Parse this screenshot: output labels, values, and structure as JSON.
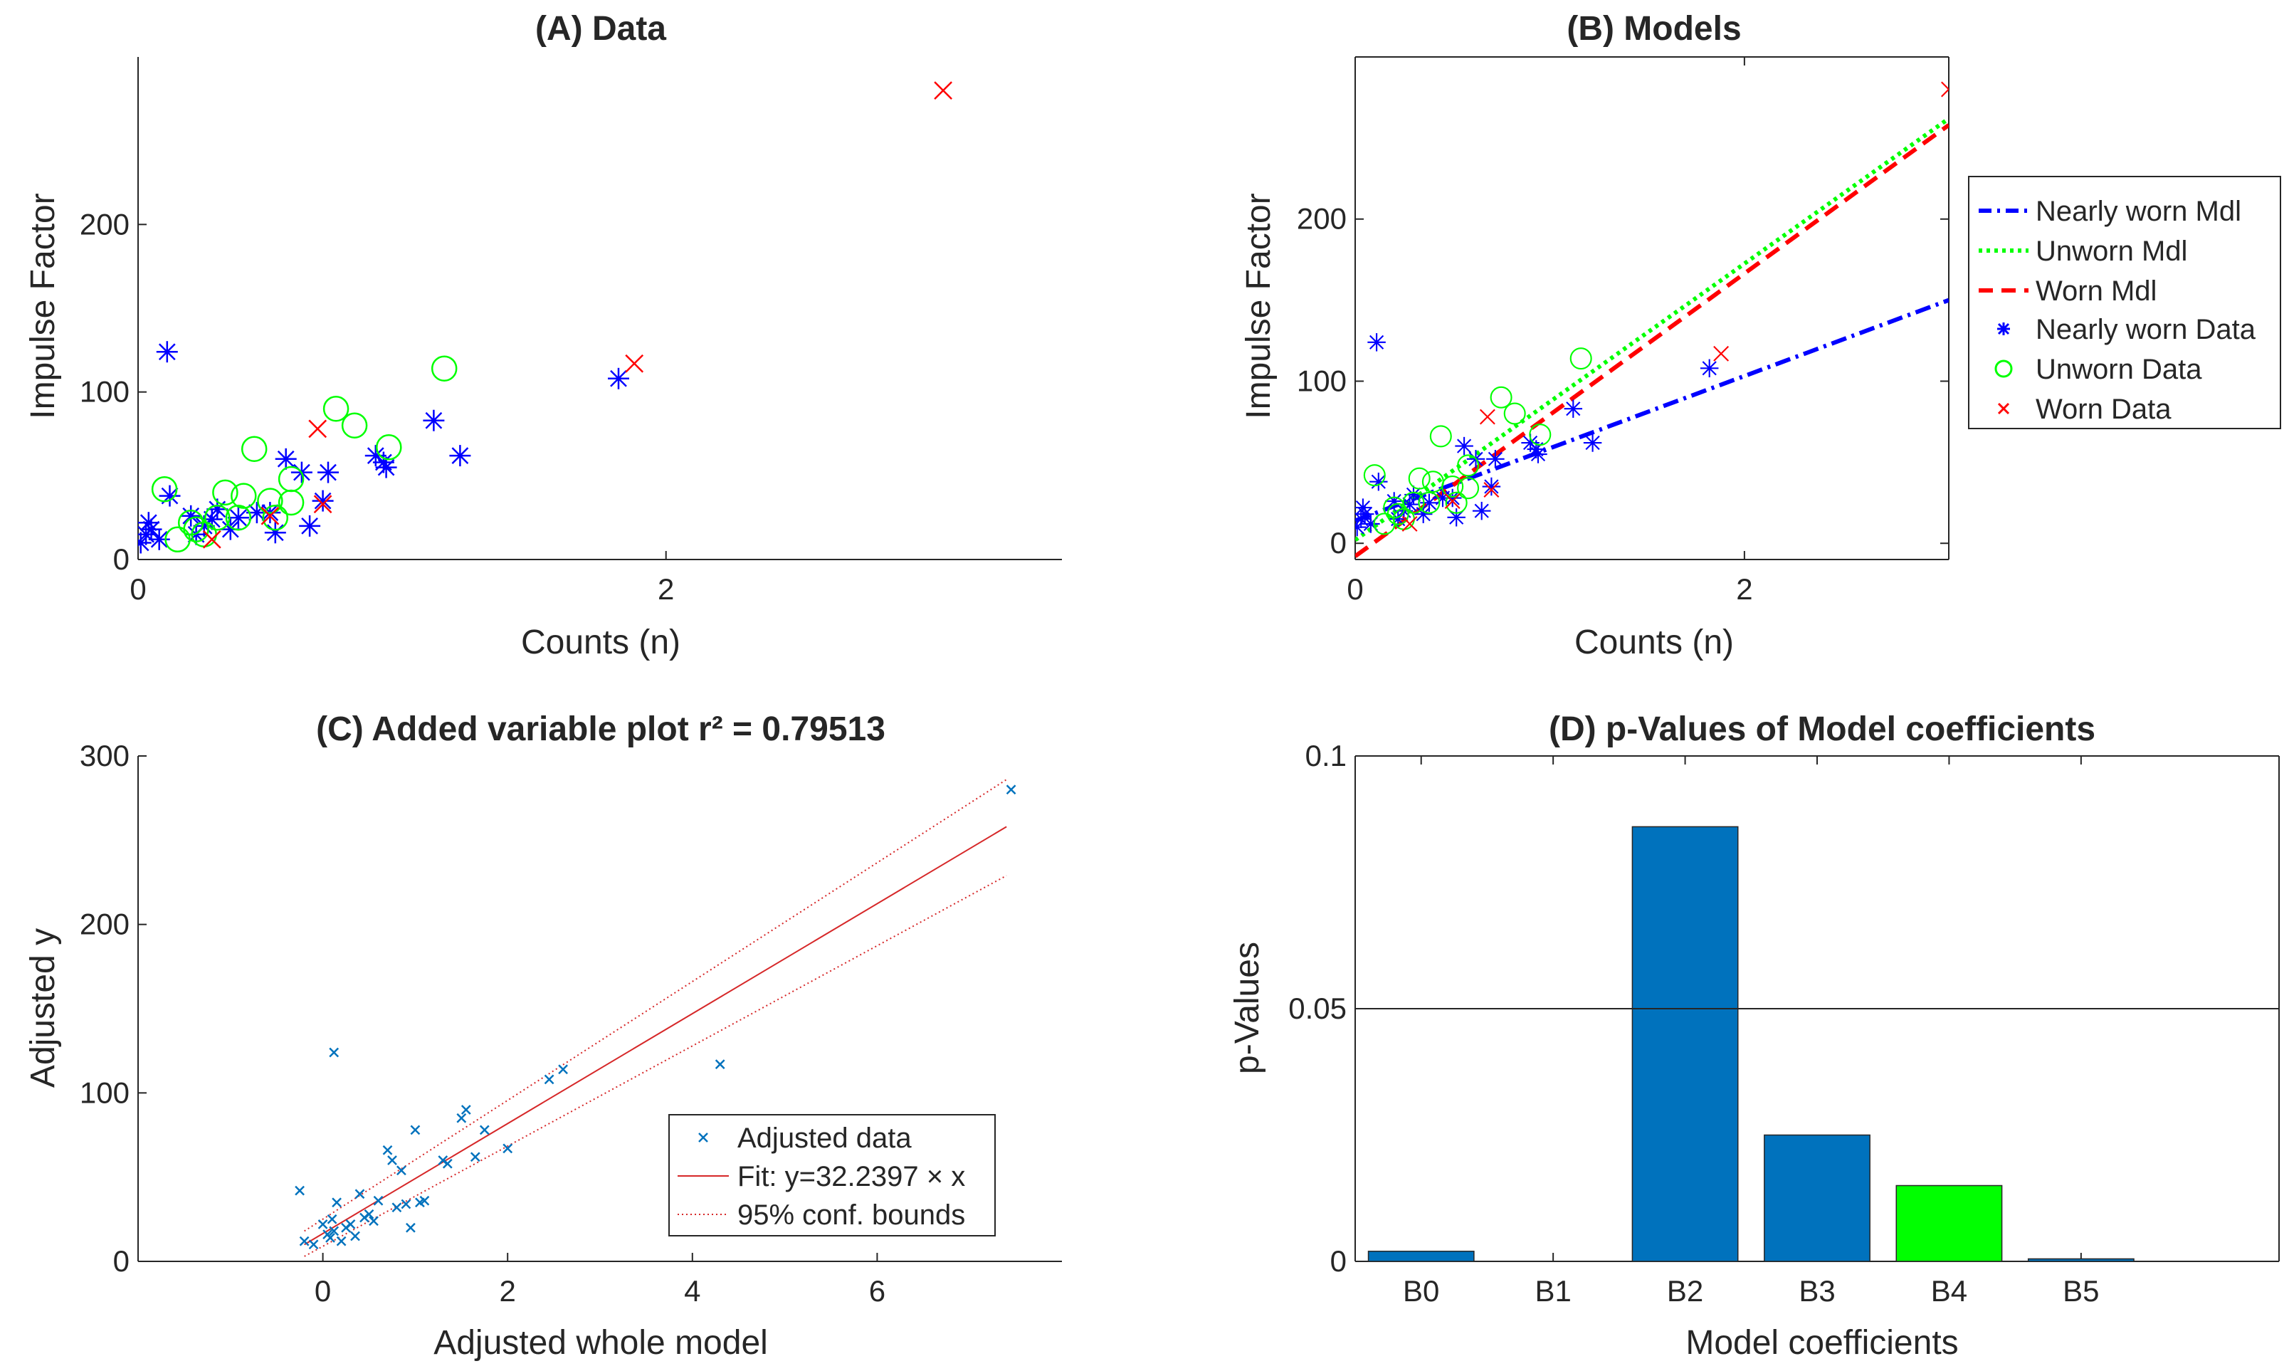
{
  "chart_data": [
    {
      "id": "A",
      "type": "scatter",
      "title": "(A) Data",
      "xlabel": "Counts (n)",
      "ylabel": "Impulse Factor",
      "xlim": [
        0,
        3.5
      ],
      "ylim": [
        0,
        300
      ],
      "xticks": [
        0,
        2
      ],
      "yticks": [
        0,
        100,
        200
      ],
      "grid": false,
      "legend": null,
      "series": [
        {
          "marker": "asterisk",
          "color": "#0000ff",
          "points": [
            [
              0.01,
              10
            ],
            [
              0.03,
              15
            ],
            [
              0.05,
              18
            ],
            [
              0.04,
              22
            ],
            [
              0.08,
              12
            ],
            [
              0.12,
              38
            ],
            [
              0.11,
              124
            ],
            [
              0.2,
              26
            ],
            [
              0.22,
              15
            ],
            [
              0.25,
              20
            ],
            [
              0.28,
              24
            ],
            [
              0.3,
              30
            ],
            [
              0.35,
              18
            ],
            [
              0.38,
              25
            ],
            [
              0.45,
              28
            ],
            [
              0.5,
              28
            ],
            [
              0.52,
              16
            ],
            [
              0.56,
              60
            ],
            [
              0.62,
              52
            ],
            [
              0.65,
              20
            ],
            [
              0.7,
              35
            ],
            [
              0.72,
              52
            ],
            [
              0.9,
              62
            ],
            [
              0.93,
              58
            ],
            [
              0.94,
              55
            ],
            [
              1.12,
              83
            ],
            [
              1.22,
              62
            ],
            [
              1.82,
              108
            ]
          ]
        },
        {
          "marker": "circle",
          "color": "#00ff00",
          "points": [
            [
              0.1,
              42
            ],
            [
              0.15,
              12
            ],
            [
              0.2,
              22
            ],
            [
              0.22,
              18
            ],
            [
              0.25,
              15
            ],
            [
              0.3,
              25
            ],
            [
              0.33,
              40
            ],
            [
              0.38,
              25
            ],
            [
              0.4,
              38
            ],
            [
              0.44,
              66
            ],
            [
              0.5,
              35
            ],
            [
              0.52,
              25
            ],
            [
              0.58,
              48
            ],
            [
              0.58,
              34
            ],
            [
              0.75,
              90
            ],
            [
              0.82,
              80
            ],
            [
              0.95,
              67
            ],
            [
              1.16,
              114
            ]
          ]
        },
        {
          "marker": "x",
          "color": "#ff0000",
          "points": [
            [
              0.28,
              12
            ],
            [
              0.5,
              26
            ],
            [
              0.68,
              78
            ],
            [
              0.7,
              33
            ],
            [
              1.88,
              117
            ],
            [
              3.05,
              280
            ]
          ]
        }
      ]
    },
    {
      "id": "B",
      "type": "scatter",
      "title": "(B) Models",
      "xlabel": "Counts (n)",
      "ylabel": "Impulse Factor",
      "xlim": [
        0,
        3.05
      ],
      "ylim": [
        -10,
        300
      ],
      "xticks": [
        0,
        2
      ],
      "yticks": [
        0,
        100,
        200
      ],
      "grid": false,
      "legend": "top-right",
      "lines": [
        {
          "name": "Nearly worn Mdl",
          "style": "dashdot",
          "color": "#0000ff",
          "x": [
            0,
            3.05
          ],
          "y": [
            14,
            150
          ]
        },
        {
          "name": "Unworn Mdl",
          "style": "dotted",
          "color": "#00ff00",
          "x": [
            0,
            3.05
          ],
          "y": [
            2,
            262
          ]
        },
        {
          "name": "Worn Mdl",
          "style": "dashed",
          "color": "#ff0000",
          "x": [
            0,
            3.05
          ],
          "y": [
            -8,
            258
          ]
        }
      ],
      "series": [
        {
          "name": "Nearly worn Data",
          "marker": "asterisk",
          "color": "#0000ff",
          "points": [
            [
              0.01,
              10
            ],
            [
              0.03,
              15
            ],
            [
              0.05,
              18
            ],
            [
              0.04,
              22
            ],
            [
              0.08,
              12
            ],
            [
              0.12,
              38
            ],
            [
              0.11,
              124
            ],
            [
              0.2,
              26
            ],
            [
              0.22,
              15
            ],
            [
              0.25,
              20
            ],
            [
              0.28,
              24
            ],
            [
              0.3,
              30
            ],
            [
              0.35,
              18
            ],
            [
              0.38,
              25
            ],
            [
              0.45,
              28
            ],
            [
              0.5,
              28
            ],
            [
              0.52,
              16
            ],
            [
              0.56,
              60
            ],
            [
              0.62,
              52
            ],
            [
              0.65,
              20
            ],
            [
              0.7,
              35
            ],
            [
              0.72,
              52
            ],
            [
              0.9,
              62
            ],
            [
              0.93,
              58
            ],
            [
              0.94,
              55
            ],
            [
              1.12,
              83
            ],
            [
              1.22,
              62
            ],
            [
              1.82,
              108
            ]
          ]
        },
        {
          "name": "Unworn Data",
          "marker": "circle",
          "color": "#00ff00",
          "points": [
            [
              0.1,
              42
            ],
            [
              0.15,
              12
            ],
            [
              0.2,
              22
            ],
            [
              0.22,
              18
            ],
            [
              0.25,
              15
            ],
            [
              0.3,
              25
            ],
            [
              0.33,
              40
            ],
            [
              0.38,
              25
            ],
            [
              0.4,
              38
            ],
            [
              0.44,
              66
            ],
            [
              0.5,
              35
            ],
            [
              0.52,
              25
            ],
            [
              0.58,
              48
            ],
            [
              0.58,
              34
            ],
            [
              0.75,
              90
            ],
            [
              0.82,
              80
            ],
            [
              0.95,
              67
            ],
            [
              1.16,
              114
            ]
          ]
        },
        {
          "name": "Worn Data",
          "marker": "x",
          "color": "#ff0000",
          "points": [
            [
              0.28,
              12
            ],
            [
              0.5,
              26
            ],
            [
              0.68,
              78
            ],
            [
              0.7,
              33
            ],
            [
              1.88,
              117
            ],
            [
              3.05,
              280
            ]
          ]
        }
      ]
    },
    {
      "id": "C",
      "type": "scatter",
      "title": "(C) Added variable plot r² = 0.79513",
      "xlabel": "Adjusted whole model",
      "ylabel": "Adjusted y",
      "xlim": [
        -2,
        8
      ],
      "ylim": [
        0,
        300
      ],
      "xticks": [
        0,
        2,
        4,
        6
      ],
      "yticks": [
        0,
        100,
        200,
        300
      ],
      "grid": false,
      "legend": "bottom-right",
      "series": [
        {
          "name": "Adjusted data",
          "marker": "x",
          "color": "#0072bd",
          "points": [
            [
              -0.25,
              42
            ],
            [
              -0.2,
              12
            ],
            [
              -0.1,
              10
            ],
            [
              0.0,
              22
            ],
            [
              0.05,
              16
            ],
            [
              0.08,
              14
            ],
            [
              0.1,
              25
            ],
            [
              0.12,
              18
            ],
            [
              0.15,
              35
            ],
            [
              0.12,
              124
            ],
            [
              0.2,
              12
            ],
            [
              0.25,
              20
            ],
            [
              0.3,
              22
            ],
            [
              0.35,
              15
            ],
            [
              0.4,
              40
            ],
            [
              0.45,
              26
            ],
            [
              0.5,
              28
            ],
            [
              0.55,
              24
            ],
            [
              0.6,
              36
            ],
            [
              0.7,
              66
            ],
            [
              0.75,
              60
            ],
            [
              0.8,
              32
            ],
            [
              0.85,
              54
            ],
            [
              0.9,
              34
            ],
            [
              0.95,
              20
            ],
            [
              1.0,
              78
            ],
            [
              1.05,
              35
            ],
            [
              1.1,
              36
            ],
            [
              1.3,
              60
            ],
            [
              1.35,
              58
            ],
            [
              1.5,
              85
            ],
            [
              1.55,
              90
            ],
            [
              1.65,
              62
            ],
            [
              1.75,
              78
            ],
            [
              2.0,
              67
            ],
            [
              2.45,
              108
            ],
            [
              2.6,
              114
            ],
            [
              4.3,
              117
            ],
            [
              7.45,
              280
            ]
          ]
        }
      ],
      "fit": {
        "name": "Fit: y=32.2397 × x",
        "color": "#d62728",
        "x": [
          -0.2,
          7.4
        ],
        "y": [
          10,
          258
        ]
      },
      "bounds": {
        "name": "95% conf. bounds",
        "color": "#d62728",
        "upper": {
          "x": [
            -0.2,
            7.4
          ],
          "y": [
            18,
            286
          ]
        },
        "lower": {
          "x": [
            -0.2,
            7.4
          ],
          "y": [
            3,
            229
          ]
        }
      }
    },
    {
      "id": "D",
      "type": "bar",
      "title": "(D) p-Values of Model coefficients",
      "xlabel": "Model coefficients",
      "ylabel": "p-Values",
      "categories": [
        "B0",
        "B1",
        "B2",
        "B3",
        "B4",
        "B5"
      ],
      "values": [
        0.002,
        0.0,
        0.086,
        0.025,
        0.015,
        0.0005
      ],
      "colors": [
        "#0072bd",
        "#0072bd",
        "#0072bd",
        "#0072bd",
        "#00ff00",
        "#0072bd"
      ],
      "xlim": [
        -0.5,
        6.5
      ],
      "ylim": [
        0,
        0.1
      ],
      "yticks": [
        0,
        0.05,
        0.1
      ],
      "ytick_labels": [
        "0",
        "0.05",
        "0.1"
      ],
      "threshold": 0.05,
      "grid": false,
      "legend": null
    }
  ]
}
